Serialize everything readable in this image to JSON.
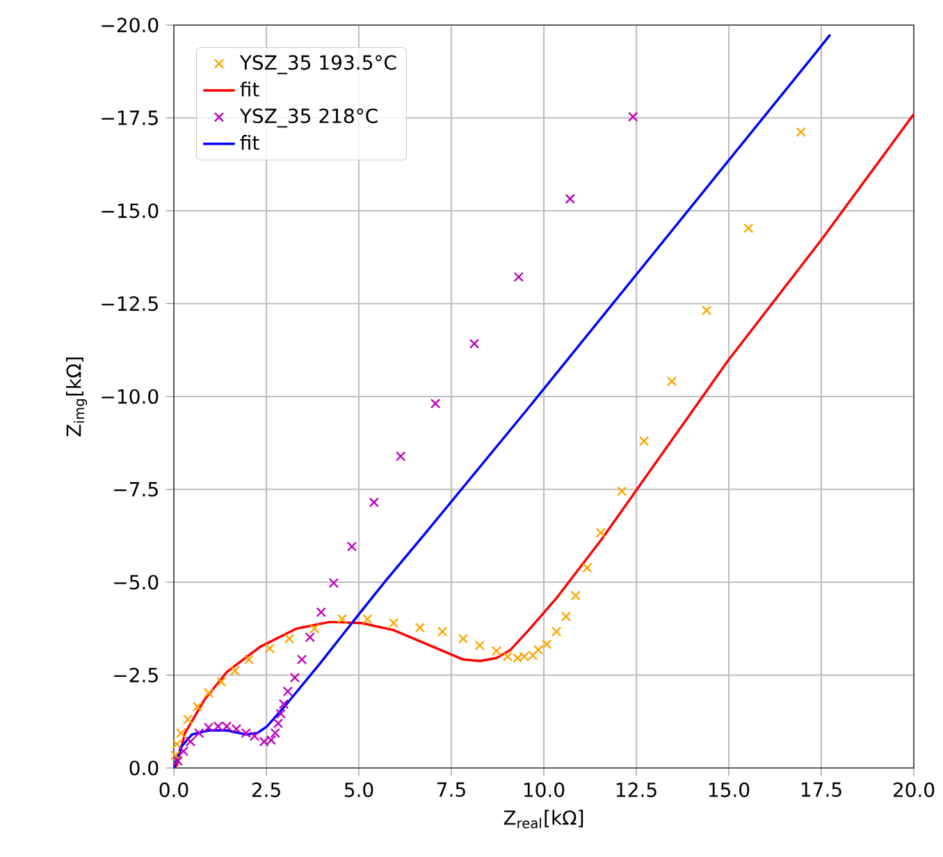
{
  "chart_data": {
    "type": "scatter",
    "xlabel": "Z$_{real}$[kΩ]",
    "ylabel": "Z$_{img}$[kΩ]",
    "xlim": [
      0,
      20
    ],
    "ylim": [
      0,
      -20
    ],
    "xticks": [
      {
        "value": 0,
        "label": "0.0"
      },
      {
        "value": 2.5,
        "label": "2.5"
      },
      {
        "value": 5,
        "label": "5.0"
      },
      {
        "value": 7.5,
        "label": "7.5"
      },
      {
        "value": 10,
        "label": "10.0"
      },
      {
        "value": 12.5,
        "label": "12.5"
      },
      {
        "value": 15,
        "label": "15.0"
      },
      {
        "value": 17.5,
        "label": "17.5"
      },
      {
        "value": 20,
        "label": "20.0"
      }
    ],
    "yticks": [
      {
        "value": 0,
        "label": "0.0"
      },
      {
        "value": -2.5,
        "label": "−2.5"
      },
      {
        "value": -5,
        "label": "−5.0"
      },
      {
        "value": -7.5,
        "label": "−7.5"
      },
      {
        "value": -10,
        "label": "−10.0"
      },
      {
        "value": -12.5,
        "label": "−12.5"
      },
      {
        "value": -15,
        "label": "−15.0"
      },
      {
        "value": -17.5,
        "label": "−17.5"
      },
      {
        "value": -20,
        "label": "−20.0"
      }
    ],
    "grid": true,
    "legend": "top left",
    "series": [
      {
        "name": "YSZ_35 193.5°C",
        "marker": "cross",
        "color": "#ffa500",
        "x": [
          0.04,
          0.08,
          0.19,
          0.38,
          0.64,
          0.94,
          1.28,
          1.65,
          2.03,
          2.59,
          3.12,
          3.8,
          4.55,
          5.23,
          5.94,
          6.65,
          7.26,
          7.82,
          8.27,
          8.72,
          9.02,
          9.29,
          9.47,
          9.7,
          9.85,
          10.08,
          10.34,
          10.6,
          10.86,
          11.17,
          11.54,
          12.11,
          12.71,
          13.46,
          14.4,
          15.53,
          16.95
        ],
        "values": [
          -0.34,
          -0.64,
          -0.94,
          -1.31,
          -1.65,
          -2.02,
          -2.32,
          -2.62,
          -2.92,
          -3.22,
          -3.48,
          -3.75,
          -4.01,
          -4.01,
          -3.9,
          -3.78,
          -3.67,
          -3.48,
          -3.3,
          -3.15,
          -3.0,
          -2.96,
          -3.0,
          -3.03,
          -3.18,
          -3.33,
          -3.67,
          -4.08,
          -4.64,
          -5.39,
          -6.33,
          -7.45,
          -8.8,
          -10.41,
          -12.32,
          -14.53,
          -17.12
        ]
      },
      {
        "name": "fit",
        "type": "line",
        "marker": "none",
        "color": "#ff0000",
        "x": [
          0,
          0.08,
          0.3,
          0.83,
          1.43,
          2.33,
          3.31,
          4.21,
          5.08,
          5.94,
          6.84,
          7.82,
          8.27,
          8.72,
          9.1,
          9.59,
          10.34,
          11.58,
          12.48,
          14.96,
          17.48,
          20.0
        ],
        "values": [
          0,
          -0.07,
          -0.94,
          -1.84,
          -2.58,
          -3.26,
          -3.75,
          -3.93,
          -3.9,
          -3.71,
          -3.33,
          -2.92,
          -2.88,
          -2.96,
          -3.18,
          -3.71,
          -4.57,
          -6.18,
          -7.45,
          -10.94,
          -14.19,
          -17.6
        ]
      },
      {
        "name": "YSZ_35 218°C",
        "marker": "cross",
        "color": "#bf00bf",
        "x": [
          0.11,
          0.26,
          0.45,
          0.68,
          0.94,
          1.2,
          1.43,
          1.69,
          1.95,
          2.18,
          2.44,
          2.63,
          2.74,
          2.82,
          2.89,
          2.97,
          3.08,
          3.27,
          3.46,
          3.68,
          3.98,
          4.32,
          4.81,
          5.41,
          6.13,
          7.07,
          8.12,
          9.32,
          10.71,
          12.41
        ],
        "values": [
          -0.19,
          -0.45,
          -0.71,
          -0.94,
          -1.09,
          -1.12,
          -1.12,
          -1.05,
          -0.94,
          -0.86,
          -0.71,
          -0.75,
          -0.94,
          -1.2,
          -1.46,
          -1.72,
          -2.06,
          -2.43,
          -2.92,
          -3.52,
          -4.19,
          -4.98,
          -5.96,
          -7.15,
          -8.39,
          -9.81,
          -11.42,
          -13.22,
          -15.32,
          -17.53
        ]
      },
      {
        "name": "fit",
        "type": "line",
        "marker": "none",
        "color": "#0000ff",
        "x": [
          0,
          0.19,
          0.49,
          0.94,
          1.43,
          1.95,
          2.26,
          2.52,
          3.08,
          3.95,
          4.81,
          5.71,
          6.84,
          9.59,
          17.29,
          17.74
        ],
        "values": [
          0,
          -0.56,
          -0.9,
          -1.01,
          -1.01,
          -0.9,
          -0.94,
          -1.12,
          -1.76,
          -2.81,
          -3.9,
          -5.02,
          -6.37,
          -9.7,
          -19.18,
          -19.74
        ]
      }
    ]
  }
}
